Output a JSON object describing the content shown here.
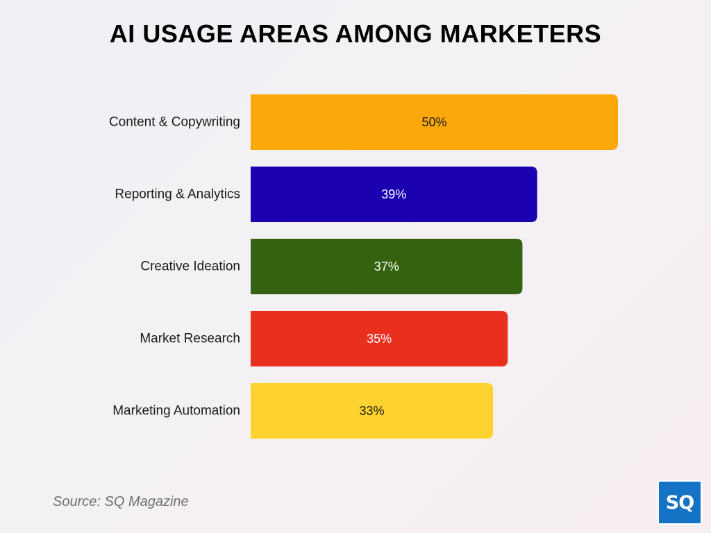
{
  "chart_data": {
    "type": "bar",
    "orientation": "horizontal",
    "title": "AI USAGE AREAS AMONG MARKETERS",
    "categories": [
      "Content & Copywriting",
      "Reporting & Analytics",
      "Creative Ideation",
      "Market Research",
      "Marketing Automation"
    ],
    "values": [
      50,
      39,
      37,
      35,
      33
    ],
    "value_labels": [
      "50%",
      "39%",
      "37%",
      "35%",
      "33%"
    ],
    "colors": [
      "#fca80a",
      "#1a00b0",
      "#356210",
      "#e9301f",
      "#fed22f"
    ],
    "value_label_colors": [
      "#1a1a1a",
      "#ffffff",
      "#ffffff",
      "#ffffff",
      "#1a1a1a"
    ],
    "xlim": [
      0,
      50
    ],
    "grid": false,
    "legend": "none"
  },
  "source": "Source: SQ Magazine",
  "logo": {
    "text": "SQ",
    "color": "#1573c6"
  }
}
